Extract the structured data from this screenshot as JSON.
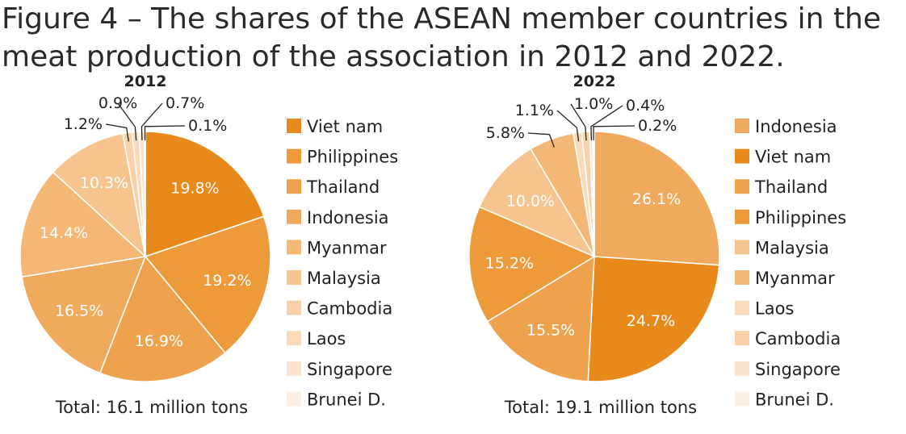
{
  "title": "Figure 4 – The shares of the ASEAN member countries in the\nmeat production of the association in 2012 and 2022.",
  "chart_data": [
    {
      "type": "pie",
      "title": "2012",
      "total_label": "Total: 16.1 million tons",
      "unit": "%",
      "slices": [
        {
          "name": "Viet nam",
          "value": 19.8,
          "label": "19.8%",
          "color": "#E8891C"
        },
        {
          "name": "Philippines",
          "value": 19.2,
          "label": "19.2%",
          "color": "#EC9A3A"
        },
        {
          "name": "Thailand",
          "value": 16.9,
          "label": "16.9%",
          "color": "#EFA24D"
        },
        {
          "name": "Indonesia",
          "value": 16.5,
          "label": "16.5%",
          "color": "#F0AA5E"
        },
        {
          "name": "Myanmar",
          "value": 14.4,
          "label": "14.4%",
          "color": "#F3B776"
        },
        {
          "name": "Malaysia",
          "value": 10.3,
          "label": "10.3%",
          "color": "#F5C48F"
        },
        {
          "name": "Cambodia",
          "value": 1.2,
          "label": "1.2%",
          "color": "#F8D1AA"
        },
        {
          "name": "Laos",
          "value": 0.9,
          "label": "0.9%",
          "color": "#F9DBBC"
        },
        {
          "name": "Singapore",
          "value": 0.7,
          "label": "0.7%",
          "color": "#FBE4CF"
        },
        {
          "name": "Brunei D.",
          "value": 0.1,
          "label": "0.1%",
          "color": "#FCEEE1"
        }
      ]
    },
    {
      "type": "pie",
      "title": "2022",
      "total_label": "Total: 19.1 million tons",
      "unit": "%",
      "slices": [
        {
          "name": "Indonesia",
          "value": 26.1,
          "label": "26.1%",
          "color": "#F0AA5E"
        },
        {
          "name": "Viet nam",
          "value": 24.7,
          "label": "24.7%",
          "color": "#E8891C"
        },
        {
          "name": "Thailand",
          "value": 15.5,
          "label": "15.5%",
          "color": "#EFA24D"
        },
        {
          "name": "Philippines",
          "value": 15.2,
          "label": "15.2%",
          "color": "#EC9A3A"
        },
        {
          "name": "Malaysia",
          "value": 10.0,
          "label": "10.0%",
          "color": "#F5C48F"
        },
        {
          "name": "Myanmar",
          "value": 5.8,
          "label": "5.8%",
          "color": "#F3B776"
        },
        {
          "name": "Laos",
          "value": 1.1,
          "label": "1.1%",
          "color": "#F9DBBC"
        },
        {
          "name": "Cambodia",
          "value": 1.0,
          "label": "1.0%",
          "color": "#F8D1AA"
        },
        {
          "name": "Singapore",
          "value": 0.4,
          "label": "0.4%",
          "color": "#FBE4CF"
        },
        {
          "name": "Brunei D.",
          "value": 0.2,
          "label": "0.2%",
          "color": "#FCEEE1"
        }
      ]
    }
  ]
}
